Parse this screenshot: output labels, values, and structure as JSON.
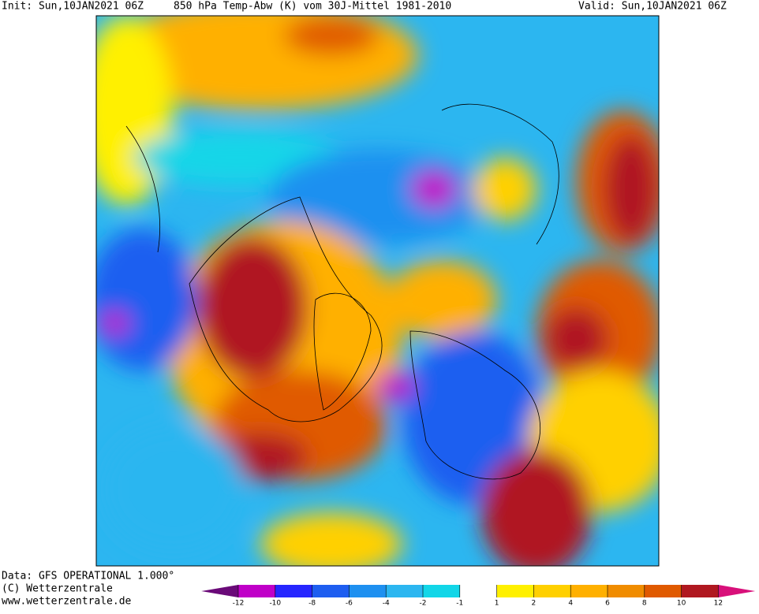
{
  "header": {
    "init": "Init: Sun,10JAN2021 06Z",
    "title": "850 hPa Temp-Abw (K) vom 30J-Mittel 1981-2010",
    "valid": "Valid: Sun,10JAN2021 06Z"
  },
  "footer": {
    "data": "Data: GFS OPERATIONAL 1.000°",
    "copyright": "(C) Wetterzentrale",
    "url": "www.wetterzentrale.de"
  },
  "colorbar": {
    "ticks": [
      -12,
      -10,
      -8,
      -6,
      -4,
      -2,
      -1,
      1,
      2,
      4,
      6,
      8,
      10,
      12
    ],
    "colors": [
      "#6a0a78",
      "#c000c8",
      "#2626ff",
      "#1e5ef0",
      "#1e90f0",
      "#2cb6f0",
      "#12d6e8",
      "#ffffff",
      "#fff000",
      "#ffd000",
      "#ffb000",
      "#f08c00",
      "#e05a00",
      "#b01820",
      "#d8107a"
    ]
  }
}
